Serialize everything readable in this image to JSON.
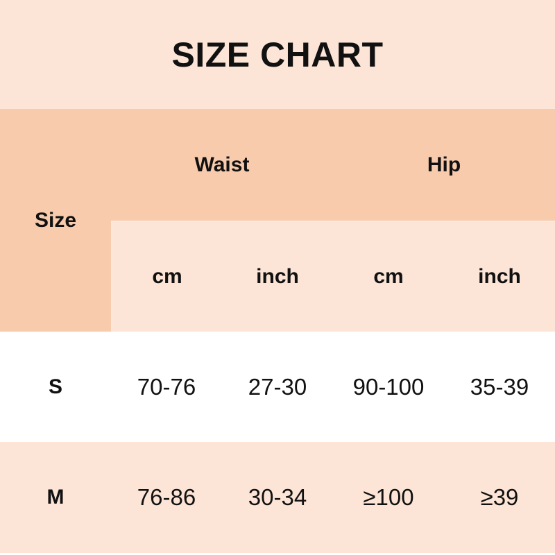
{
  "title": "SIZE CHART",
  "headers": {
    "size": "Size",
    "waist": "Waist",
    "hip": "Hip",
    "units": [
      "cm",
      "inch",
      "cm",
      "inch"
    ]
  },
  "rows": [
    {
      "size": "S",
      "values": [
        "70-76",
        "27-30",
        "90-100",
        "35-39"
      ]
    },
    {
      "size": "M",
      "values": [
        "76-86",
        "30-34",
        "≥100",
        "≥39"
      ]
    }
  ],
  "colors": {
    "header_dark": "#f8cbad",
    "header_light": "#fce4d6",
    "row_alt": "#fce4d6",
    "row_white": "#ffffff"
  }
}
